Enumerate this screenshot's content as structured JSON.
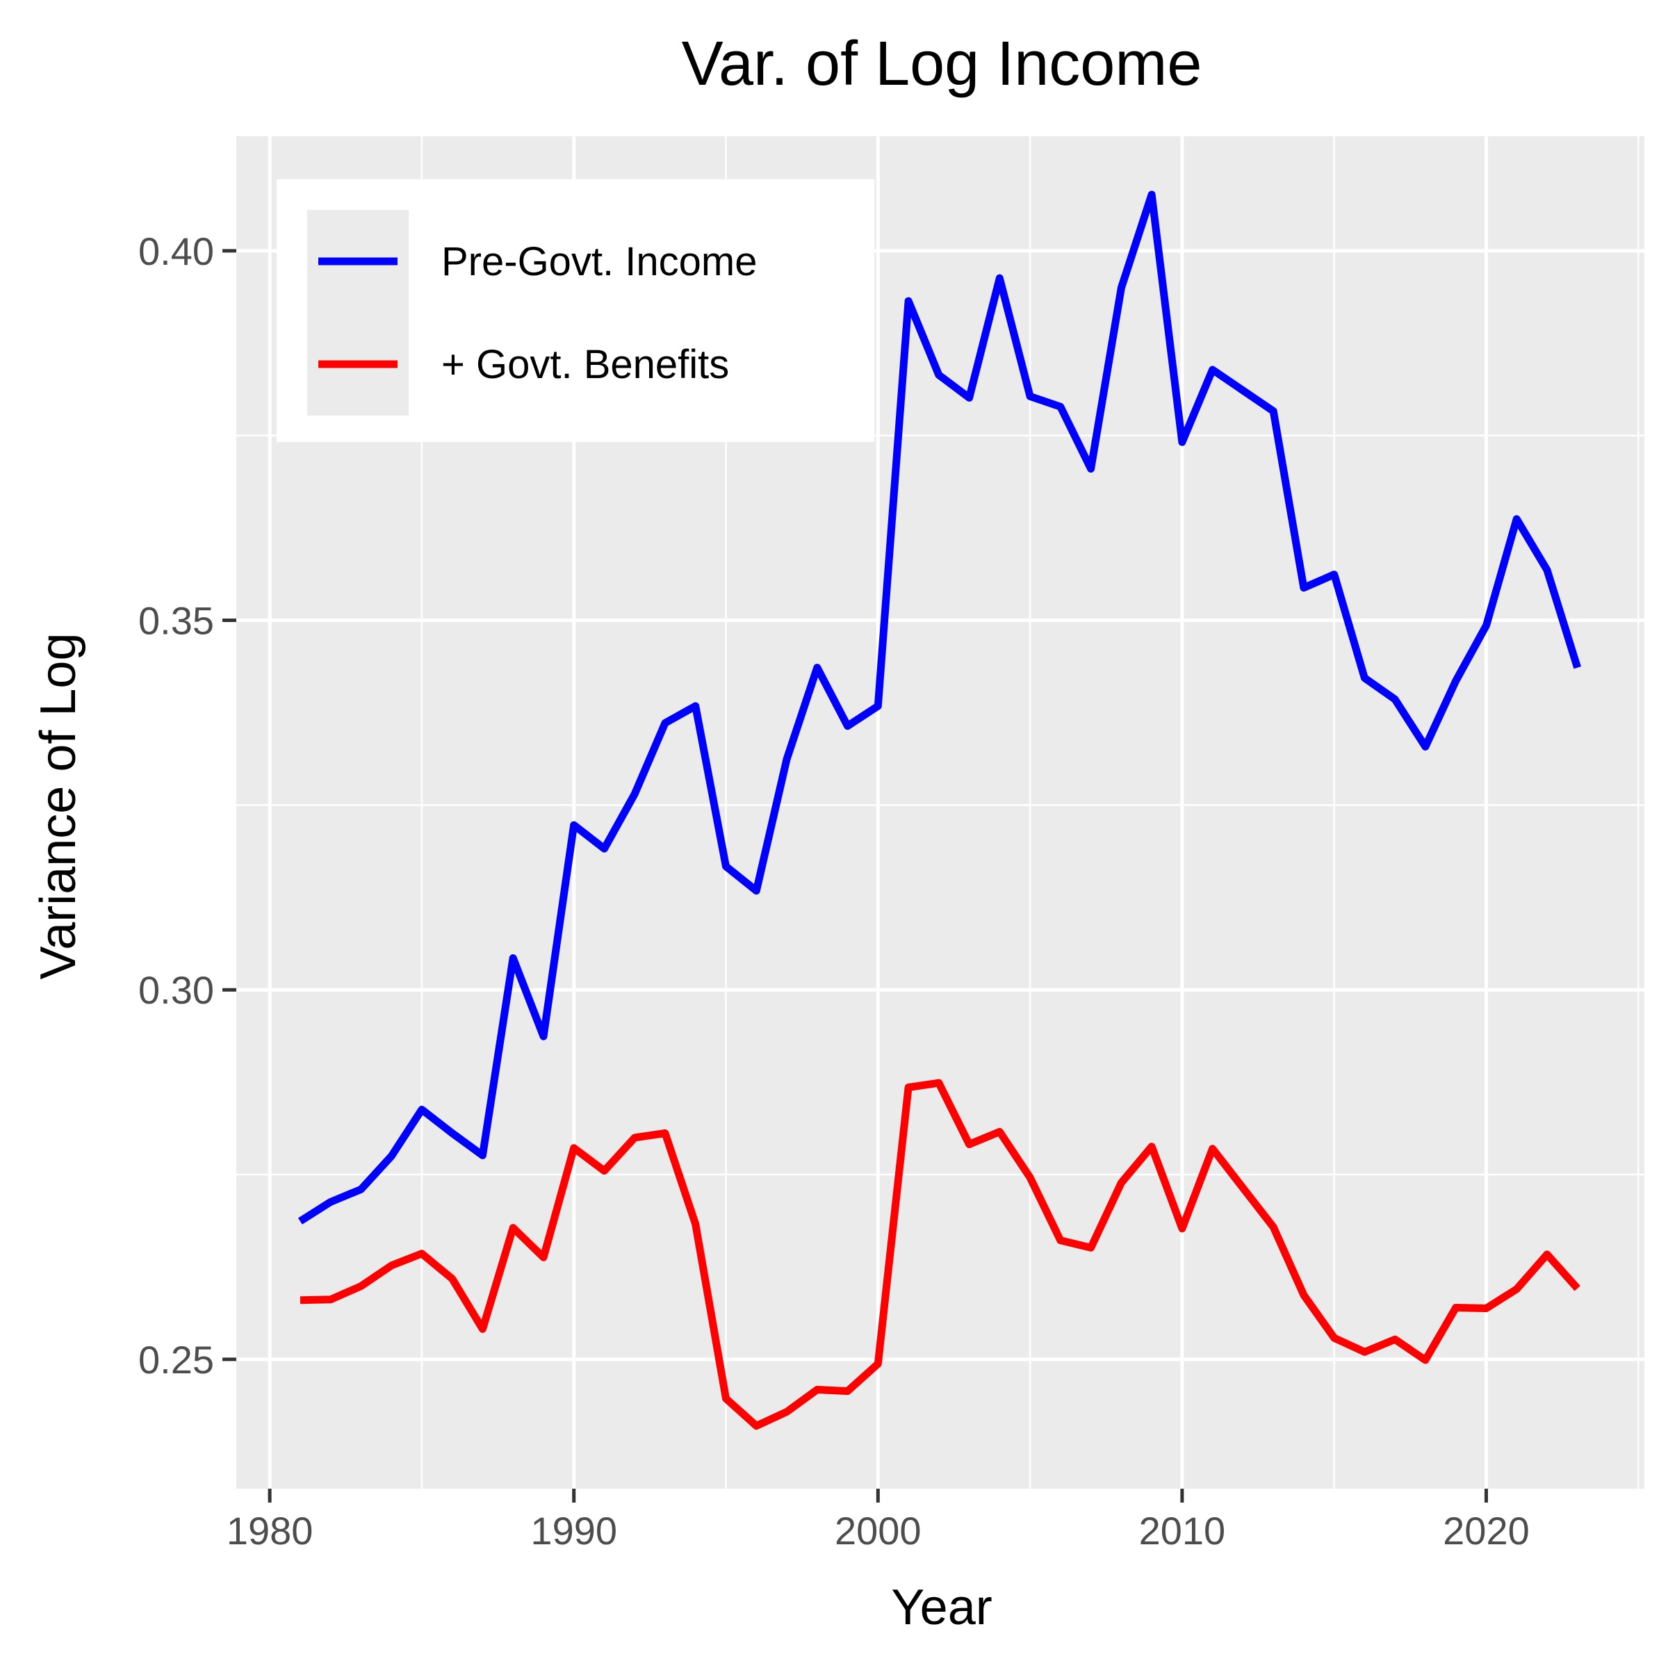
{
  "chart_data": {
    "type": "line",
    "title": "Var. of Log Income",
    "xlabel": "Year",
    "ylabel": "Variance of Log",
    "xlim": [
      1978.9,
      2025.2
    ],
    "ylim": [
      0.2325,
      0.4155
    ],
    "x_ticks": [
      1980,
      1990,
      2000,
      2010,
      2020
    ],
    "x_tick_labels": [
      "1980",
      "1990",
      "2000",
      "2010",
      "2020"
    ],
    "y_ticks": [
      0.25,
      0.3,
      0.35,
      0.4
    ],
    "y_tick_labels": [
      "0.25",
      "0.30",
      "0.35",
      "0.40"
    ],
    "grid": true,
    "legend_position": "top-left",
    "background": "#ebebeb",
    "x": [
      1981,
      1982,
      1983,
      1984,
      1985,
      1986,
      1987,
      1988,
      1989,
      1990,
      1991,
      1992,
      1993,
      1994,
      1995,
      1996,
      1997,
      1998,
      1999,
      2000,
      2001,
      2002,
      2003,
      2004,
      2005,
      2006,
      2007,
      2008,
      2009,
      2010,
      2011,
      2012,
      2013,
      2014,
      2015,
      2016,
      2017,
      2018,
      2019,
      2020,
      2021,
      2022,
      2023
    ],
    "series": [
      {
        "name": "Pre-Govt. Income",
        "color": "#0000ff",
        "values": [
          0.2687,
          0.2713,
          0.273,
          0.2775,
          0.2838,
          0.2806,
          0.2776,
          0.3043,
          0.2937,
          0.3223,
          0.3191,
          0.3265,
          0.3361,
          0.3384,
          0.3167,
          0.3134,
          0.3312,
          0.3436,
          0.3357,
          0.3384,
          0.3932,
          0.3832,
          0.3801,
          0.3963,
          0.3803,
          0.3789,
          0.3705,
          0.395,
          0.4076,
          0.3741,
          0.3839,
          0.3811,
          0.3783,
          0.3544,
          0.3562,
          0.3422,
          0.3393,
          0.3329,
          0.3418,
          0.3493,
          0.3637,
          0.3568,
          0.3436
        ]
      },
      {
        "name": "+ Govt. Benefits",
        "color": "#ff0000",
        "values": [
          0.258,
          0.2581,
          0.2599,
          0.2627,
          0.2643,
          0.2609,
          0.2541,
          0.2678,
          0.2638,
          0.2786,
          0.2755,
          0.28,
          0.2806,
          0.2683,
          0.2447,
          0.241,
          0.2429,
          0.2459,
          0.2457,
          0.2494,
          0.2868,
          0.2874,
          0.2791,
          0.2808,
          0.2746,
          0.2661,
          0.2651,
          0.2739,
          0.2788,
          0.2677,
          0.2785,
          0.2732,
          0.2679,
          0.2587,
          0.2529,
          0.251,
          0.2527,
          0.2499,
          0.257,
          0.2569,
          0.2595,
          0.2642,
          0.2596
        ]
      }
    ]
  }
}
